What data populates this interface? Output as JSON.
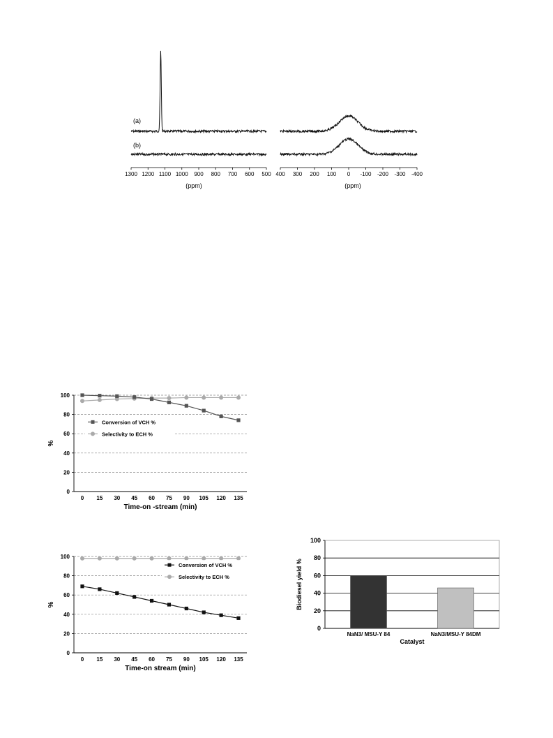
{
  "chart_data": [
    {
      "type": "line",
      "title": "",
      "panels": [
        {
          "x_range": [
            1300,
            500
          ],
          "ticks": [
            1300,
            1200,
            1100,
            1000,
            900,
            800,
            700,
            600,
            500
          ],
          "xlabel": "(ppm)"
        },
        {
          "x_range": [
            400,
            -400
          ],
          "ticks": [
            400,
            300,
            200,
            100,
            0,
            -100,
            -200,
            -300,
            -400
          ],
          "xlabel": "(ppm)"
        }
      ],
      "series": [
        {
          "name": "(a)",
          "peaks_ppm": [
            1125,
            0
          ]
        },
        {
          "name": "(b)",
          "peaks_ppm": [
            0
          ]
        }
      ],
      "grid": false
    },
    {
      "type": "line",
      "categories": [
        0,
        15,
        30,
        45,
        60,
        75,
        90,
        105,
        120,
        135
      ],
      "series": [
        {
          "name": "Conversion of VCH %",
          "color": "#555555",
          "marker": "square",
          "values": [
            100,
            99.5,
            99,
            98,
            96,
            92.5,
            89,
            84,
            78,
            74
          ]
        },
        {
          "name": "Selectivity to ECH %",
          "color": "#aaaaaa",
          "marker": "circle",
          "values": [
            94,
            95,
            96,
            96.5,
            97,
            97,
            97.5,
            97.5,
            97.5,
            97.5
          ]
        }
      ],
      "title": "",
      "xlabel": "Time-on -stream (min)",
      "ylabel": "%",
      "ylim": [
        0,
        100
      ],
      "yticks": [
        0,
        20,
        40,
        60,
        80,
        100
      ],
      "grid": true,
      "legend": "center-left"
    },
    {
      "type": "line",
      "categories": [
        0,
        15,
        30,
        45,
        60,
        75,
        90,
        105,
        120,
        135
      ],
      "series": [
        {
          "name": "Conversion of VCH %",
          "color": "#111111",
          "marker": "square",
          "values": [
            69,
            66,
            62,
            58,
            54,
            50,
            46,
            42,
            39,
            36
          ]
        },
        {
          "name": "Selectivity to ECH %",
          "color": "#aaaaaa",
          "marker": "circle",
          "values": [
            98,
            98,
            98,
            98,
            98,
            98,
            98,
            98,
            98,
            98
          ]
        }
      ],
      "title": "",
      "xlabel": "Time-on stream (min)",
      "ylabel": "%",
      "ylim": [
        0,
        100
      ],
      "yticks": [
        0,
        20,
        40,
        60,
        80,
        100
      ],
      "grid": true,
      "legend": "top-right"
    },
    {
      "type": "bar",
      "categories": [
        "NaN3/ MSU-Y 84",
        "NaN3/MSU-Y 84DM"
      ],
      "values": [
        60,
        46
      ],
      "colors": [
        "#333333",
        "#c0c0c0"
      ],
      "title": "",
      "xlabel": "Catalyst",
      "ylabel": "Biodiesel yield %",
      "ylim": [
        0,
        100
      ],
      "yticks": [
        0,
        20,
        40,
        60,
        80,
        100
      ],
      "grid": true
    }
  ]
}
